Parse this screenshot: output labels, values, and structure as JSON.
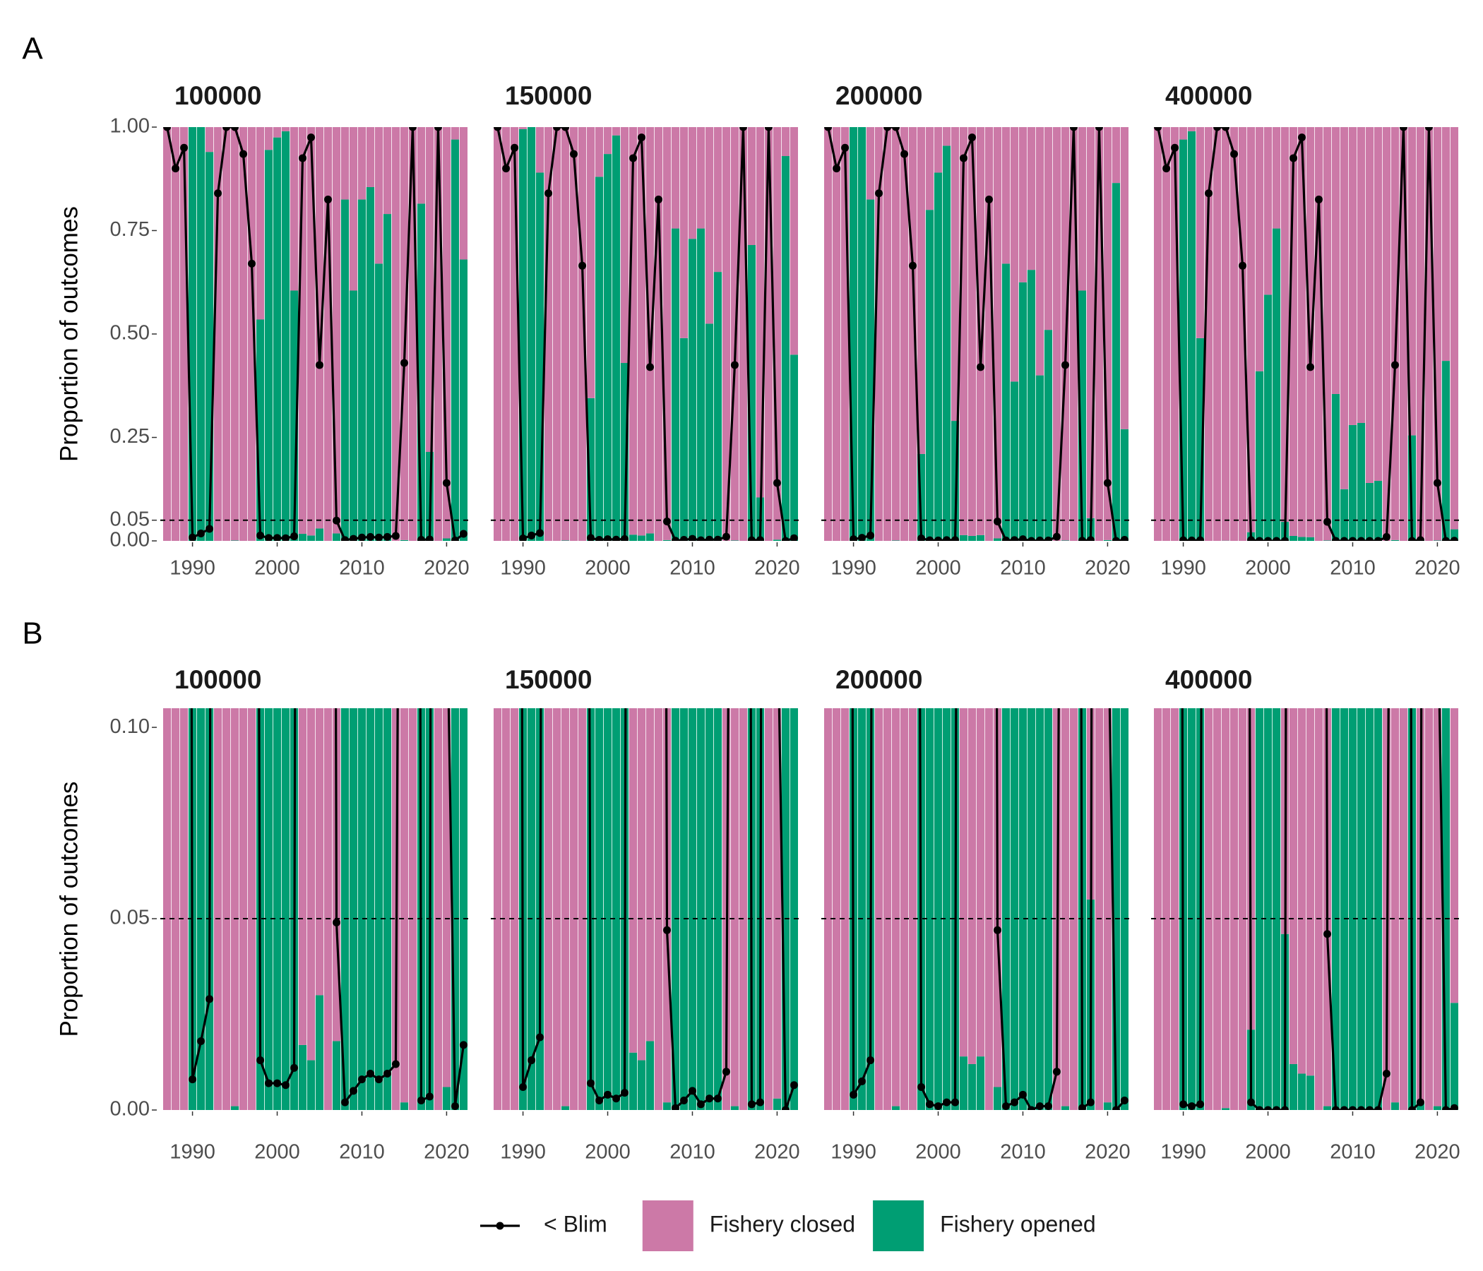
{
  "chart_data": {
    "type": "stacked-bar-line",
    "ylabel": "Proportion of outcomes",
    "x": [
      1987,
      1988,
      1989,
      1990,
      1991,
      1992,
      1993,
      1994,
      1995,
      1996,
      1997,
      1998,
      1999,
      2000,
      2001,
      2002,
      2003,
      2004,
      2005,
      2006,
      2007,
      2008,
      2009,
      2010,
      2011,
      2012,
      2013,
      2014,
      2015,
      2016,
      2017,
      2018,
      2019,
      2020,
      2021,
      2022
    ],
    "xlim": [
      1986.2,
      2022.8
    ],
    "xticks": [
      1990,
      2000,
      2010,
      2020
    ],
    "threshold": 0.05,
    "series": [
      {
        "name": "< Blim",
        "color": "#000000",
        "kind": "line"
      },
      {
        "name": "Fishery closed",
        "color": "#CC79A7",
        "kind": "bar"
      },
      {
        "name": "Fishery opened",
        "color": "#009E73",
        "kind": "bar"
      }
    ],
    "rows": [
      {
        "label": "A",
        "ylim": [
          0,
          1
        ],
        "yticks": [
          {
            "value": 0,
            "label": "0.00"
          },
          0.05,
          0.25,
          {
            "value": 0.5,
            "label": "0.50"
          },
          0.75,
          {
            "value": 1,
            "label": "1.00"
          }
        ]
      },
      {
        "label": "B",
        "ylim": [
          0,
          0.105
        ],
        "yticks": [
          {
            "value": 0,
            "label": "0.00"
          },
          0.05,
          {
            "value": 0.1,
            "label": "0.10"
          }
        ]
      }
    ],
    "panels": [
      {
        "title": "100000",
        "values": [
          [
            1,
            0.9,
            0.95,
            0.008,
            0.018,
            0.029,
            0.84,
            1,
            1,
            0.935,
            0.67,
            0.013,
            0.007,
            0.007,
            0.0065,
            0.011,
            0.925,
            0.975,
            0.425,
            0.825,
            0.049,
            0.002,
            0.005,
            0.008,
            0.0095,
            0.008,
            0.0095,
            0.012,
            0.43,
            1,
            0.0025,
            0.0035,
            1,
            0.14,
            0.001,
            0.017
          ],
          [
            1,
            1,
            1,
            0,
            0,
            0.06,
            1,
            1,
            0.999,
            1,
            1,
            0.465,
            0.055,
            0.025,
            0.01,
            0.395,
            0.983,
            0.987,
            0.97,
            1,
            0.982,
            0.175,
            0.395,
            0.175,
            0.145,
            0.33,
            0.21,
            1,
            0.998,
            1,
            0.185,
            0.785,
            1,
            0.994,
            0.03,
            0.32
          ],
          [
            0,
            0,
            0,
            1,
            1,
            0.94,
            0,
            0,
            0.001,
            0,
            0,
            0.535,
            0.945,
            0.975,
            0.99,
            0.605,
            0.017,
            0.013,
            0.03,
            0,
            0.018,
            0.825,
            0.605,
            0.825,
            0.855,
            0.67,
            0.79,
            0,
            0.002,
            0,
            0.815,
            0.215,
            0,
            0.006,
            0.97,
            0.68
          ]
        ]
      },
      {
        "title": "150000",
        "values": [
          [
            1,
            0.9,
            0.95,
            0.006,
            0.013,
            0.019,
            0.84,
            1,
            1,
            0.935,
            0.665,
            0.007,
            0.0025,
            0.004,
            0.003,
            0.0045,
            0.925,
            0.975,
            0.42,
            0.825,
            0.047,
            0.0005,
            0.0025,
            0.005,
            0.0015,
            0.003,
            0.003,
            0.01,
            0.425,
            1,
            0.0015,
            0.002,
            1,
            0.14,
            0,
            0.0065
          ],
          [
            1,
            1,
            1,
            0.005,
            0,
            0.11,
            1,
            1,
            0.999,
            1,
            1,
            0.655,
            0.12,
            0.065,
            0.02,
            0.57,
            0.985,
            0.987,
            0.982,
            1,
            0.998,
            0.245,
            0.51,
            0.27,
            0.245,
            0.475,
            0.35,
            1,
            0.999,
            1,
            0.285,
            0.895,
            1,
            0.997,
            0.07,
            0.55
          ],
          [
            0,
            0,
            0,
            0.995,
            1,
            0.89,
            0,
            0,
            0.001,
            0,
            0,
            0.345,
            0.88,
            0.935,
            0.98,
            0.43,
            0.015,
            0.013,
            0.018,
            0,
            0.002,
            0.755,
            0.49,
            0.73,
            0.755,
            0.525,
            0.65,
            0,
            0.001,
            0,
            0.715,
            0.105,
            0,
            0.003,
            0.93,
            0.45
          ]
        ]
      },
      {
        "title": "200000",
        "values": [
          [
            1,
            0.9,
            0.95,
            0.004,
            0.0075,
            0.013,
            0.84,
            1,
            1,
            0.935,
            0.665,
            0.006,
            0.0015,
            0.001,
            0.002,
            0.002,
            0.925,
            0.975,
            0.42,
            0.825,
            0.047,
            0.001,
            0.002,
            0.004,
            0,
            0.001,
            0.001,
            0.01,
            0.425,
            1,
            0.0005,
            0.002,
            1,
            0.14,
            0,
            0.0025
          ],
          [
            1,
            1,
            1,
            0,
            0,
            0.175,
            1,
            1,
            0.999,
            1,
            1,
            0.79,
            0.2,
            0.11,
            0.045,
            0.71,
            0.986,
            0.988,
            0.986,
            1,
            0.994,
            0.33,
            0.615,
            0.375,
            0.345,
            0.6,
            0.49,
            1,
            0.999,
            1,
            0.395,
            0.945,
            1,
            0.998,
            0.135,
            0.73
          ],
          [
            0,
            0,
            0,
            1,
            1,
            0.825,
            0,
            0,
            0.001,
            0,
            0,
            0.21,
            0.8,
            0.89,
            0.955,
            0.29,
            0.014,
            0.012,
            0.014,
            0,
            0.006,
            0.67,
            0.385,
            0.625,
            0.655,
            0.4,
            0.51,
            0,
            0.001,
            0,
            0.605,
            0.055,
            0,
            0.002,
            0.865,
            0.27
          ]
        ]
      },
      {
        "title": "400000",
        "values": [
          [
            1,
            0.9,
            0.95,
            0.0015,
            0.001,
            0.0015,
            0.84,
            1,
            1,
            0.935,
            0.665,
            0.002,
            0,
            0,
            0,
            0,
            0.925,
            0.975,
            0.42,
            0.825,
            0.046,
            0,
            0,
            0,
            0,
            0,
            0,
            0.0095,
            0.425,
            1,
            0,
            0.002,
            1,
            0.14,
            0,
            0.0005
          ],
          [
            1,
            1,
            1,
            0.03,
            0.01,
            0.51,
            1,
            1,
            0.9995,
            1,
            1,
            0.979,
            0.59,
            0.405,
            0.245,
            0.954,
            0.988,
            0.9905,
            0.991,
            1,
            0.999,
            0.645,
            0.875,
            0.72,
            0.715,
            0.86,
            0.855,
            1,
            0.998,
            1,
            0.745,
            0.998,
            1,
            0.999,
            0.565,
            0.972
          ],
          [
            0,
            0,
            0,
            0.97,
            0.99,
            0.49,
            0,
            0,
            0.0005,
            0,
            0,
            0.021,
            0.41,
            0.595,
            0.755,
            0.046,
            0.012,
            0.0095,
            0.009,
            0,
            0.001,
            0.355,
            0.125,
            0.28,
            0.285,
            0.14,
            0.145,
            0,
            0.002,
            0,
            0.255,
            0.002,
            0,
            0.001,
            0.435,
            0.028
          ]
        ]
      }
    ]
  }
}
